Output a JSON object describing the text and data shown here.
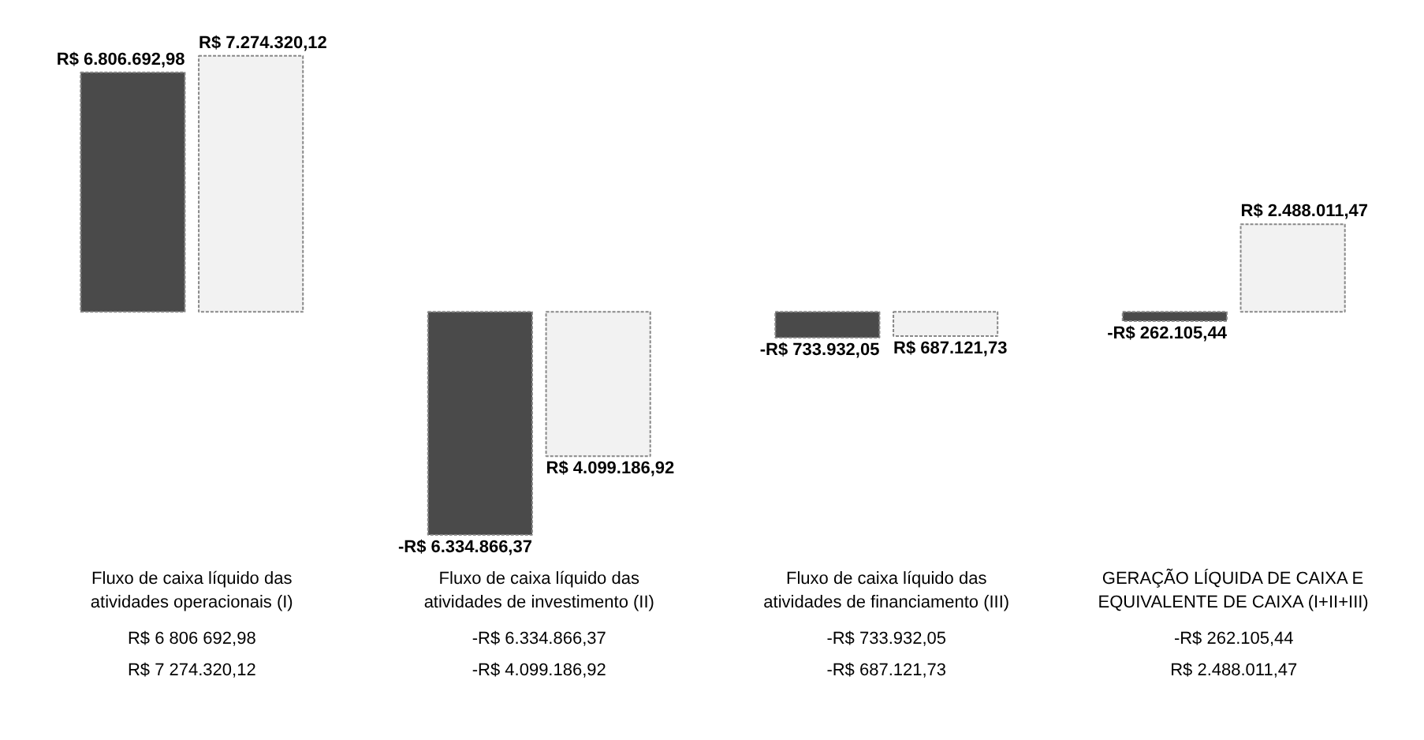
{
  "chart_data": {
    "type": "bar",
    "categories": [
      "Fluxo de caixa líquido das\natividades operacionais (I)",
      "Fluxo de caixa líquido das\natividades de investimento (II)",
      "Fluxo de caixa líquido das\natividades de financiamento (III)",
      "GERAÇÃO LÍQUIDA DE CAIXA E\nEQUIVALENTE DE CAIXA (I+II+III)"
    ],
    "series": [
      {
        "color": "#4a4a4a",
        "values": [
          6806692.98,
          -6334866.37,
          -733932.05,
          -262105.44
        ],
        "value_labels": [
          "R$ 6.806.692,98",
          "-R$ 6.334.866,37",
          "-R$ 733.932,05",
          "-R$ 262.105,44"
        ]
      },
      {
        "color": "#f2f2f2",
        "values": [
          7274320.12,
          -4099186.92,
          -687121.73,
          2488011.47
        ],
        "value_labels": [
          "R$ 7.274.320,12",
          "R$ 4.099.186,92",
          "R$ 687.121,73",
          "R$ 2.488.011,47"
        ]
      }
    ],
    "annotations": [
      "R$ 6 806 692,98",
      "-R$ 6.334.866,37",
      "-R$ 733.932,05",
      "-R$ 262.105,44",
      "R$ 7 274.320,12",
      "-R$ 4.099.186,92",
      "-R$ 687.121,73",
      "R$ 2.488.011,47"
    ],
    "grid": false
  }
}
